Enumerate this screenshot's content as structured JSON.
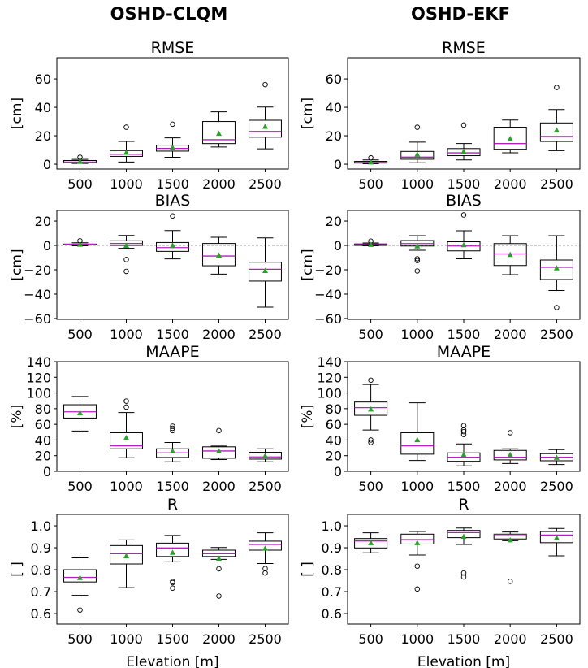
{
  "column_titles": [
    "OSHD-CLQM",
    "OSHD-EKF"
  ],
  "colors": {
    "median": "#b41fbf",
    "mean": "#2ca02c",
    "box": "#000000",
    "zero_line": "#808080"
  },
  "chart_data": [
    {
      "type": "box",
      "column": 0,
      "title": "RMSE",
      "ylabel": "[cm]",
      "xlabel": "",
      "categories": [
        "500",
        "1000",
        "1500",
        "2000",
        "2500"
      ],
      "ylim": [
        -3.4,
        74.9
      ],
      "yticks": [
        0,
        20,
        40,
        60
      ],
      "ytick_labels": [
        "0",
        "20",
        "40",
        "60"
      ],
      "zero_line": false,
      "boxes": [
        {
          "lo": 0.5,
          "q1": 1.1,
          "med": 1.5,
          "q3": 2.6,
          "hi": 3.4,
          "mean": 2.0,
          "out": [
            4.9
          ]
        },
        {
          "lo": 1.5,
          "q1": 5.5,
          "med": 7.0,
          "q3": 9.6,
          "hi": 16.0,
          "mean": 8.3,
          "out": [
            26.0
          ]
        },
        {
          "lo": 4.9,
          "q1": 9.2,
          "med": 11.1,
          "q3": 13.4,
          "hi": 18.5,
          "mean": 11.9,
          "out": [
            28.1
          ]
        },
        {
          "lo": 12.1,
          "q1": 14.5,
          "med": 17.2,
          "q3": 30.0,
          "hi": 36.8,
          "mean": 21.7,
          "out": []
        },
        {
          "lo": 10.8,
          "q1": 19.0,
          "med": 23.0,
          "q3": 30.9,
          "hi": 40.2,
          "mean": 26.6,
          "out": [
            56.0
          ]
        }
      ]
    },
    {
      "type": "box",
      "column": 1,
      "title": "RMSE",
      "ylabel": "[cm]",
      "xlabel": "",
      "categories": [
        "500",
        "1000",
        "1500",
        "2000",
        "2500"
      ],
      "ylim": [
        -3.4,
        74.9
      ],
      "yticks": [
        0,
        20,
        40,
        60
      ],
      "ytick_labels": [
        "0",
        "20",
        "40",
        "60"
      ],
      "zero_line": false,
      "boxes": [
        {
          "lo": 0.3,
          "q1": 0.8,
          "med": 1.3,
          "q3": 2.0,
          "hi": 3.0,
          "mean": 1.5,
          "out": [
            4.5
          ]
        },
        {
          "lo": 1.0,
          "q1": 3.5,
          "med": 5.0,
          "q3": 9.0,
          "hi": 15.5,
          "mean": 7.0,
          "out": [
            26.0
          ]
        },
        {
          "lo": 3.0,
          "q1": 6.0,
          "med": 8.0,
          "q3": 11.0,
          "hi": 14.5,
          "mean": 9.0,
          "out": [
            27.5
          ]
        },
        {
          "lo": 8.0,
          "q1": 10.5,
          "med": 14.5,
          "q3": 26.0,
          "hi": 31.0,
          "mean": 18.0,
          "out": []
        },
        {
          "lo": 9.5,
          "q1": 16.0,
          "med": 19.5,
          "q3": 29.0,
          "hi": 38.5,
          "mean": 24.0,
          "out": [
            54.0
          ]
        }
      ]
    },
    {
      "type": "box",
      "column": 0,
      "title": "BIAS",
      "ylabel": "[cm]",
      "xlabel": "",
      "categories": [
        "500",
        "1000",
        "1500",
        "2000",
        "2500"
      ],
      "ylim": [
        -60.7,
        28.7
      ],
      "yticks": [
        20,
        0,
        -20,
        -40,
        -60
      ],
      "ytick_labels": [
        "20",
        "0",
        "−20",
        "−40",
        "−60"
      ],
      "zero_line": true,
      "boxes": [
        {
          "lo": -0.3,
          "q1": 0.4,
          "med": 1.0,
          "q3": 1.1,
          "hi": 2.2,
          "mean": 0.9,
          "out": [
            3.8
          ]
        },
        {
          "lo": -2.4,
          "q1": 0.0,
          "med": 1.6,
          "q3": 3.8,
          "hi": 8.2,
          "mean": 0.0,
          "out": [
            -11.6,
            -21.3
          ]
        },
        {
          "lo": -11.1,
          "q1": -4.9,
          "med": -1.8,
          "q3": 2.4,
          "hi": 12.2,
          "mean": 0.2,
          "out": [
            24.2
          ]
        },
        {
          "lo": -23.6,
          "q1": -16.7,
          "med": -8.7,
          "q3": 1.6,
          "hi": 6.7,
          "mean": -8.0,
          "out": []
        },
        {
          "lo": -50.7,
          "q1": -29.3,
          "med": -19.6,
          "q3": -13.8,
          "hi": 6.2,
          "mean": -20.7,
          "out": []
        }
      ]
    },
    {
      "type": "box",
      "column": 1,
      "title": "BIAS",
      "ylabel": "[cm]",
      "xlabel": "",
      "categories": [
        "500",
        "1000",
        "1500",
        "2000",
        "2500"
      ],
      "ylim": [
        -60.7,
        28.7
      ],
      "yticks": [
        20,
        0,
        -20,
        -40,
        -60
      ],
      "ytick_labels": [
        "20",
        "0",
        "−20",
        "−40",
        "−60"
      ],
      "zero_line": true,
      "boxes": [
        {
          "lo": -0.3,
          "q1": 0.0,
          "med": 0.7,
          "q3": 1.2,
          "hi": 2.0,
          "mean": 0.8,
          "out": [
            3.5
          ]
        },
        {
          "lo": -4.0,
          "q1": -0.5,
          "med": 1.5,
          "q3": 4.0,
          "hi": 8.0,
          "mean": -0.5,
          "out": [
            -11.0,
            -12.5,
            -21.0
          ]
        },
        {
          "lo": -11.0,
          "q1": -4.5,
          "med": -0.5,
          "q3": 3.0,
          "hi": 12.0,
          "mean": 0.5,
          "out": [
            25.0
          ]
        },
        {
          "lo": -24.0,
          "q1": -16.5,
          "med": -7.0,
          "q3": 1.5,
          "hi": 8.0,
          "mean": -7.5,
          "out": []
        },
        {
          "lo": -37.0,
          "q1": -28.0,
          "med": -18.0,
          "q3": -12.0,
          "hi": 8.0,
          "mean": -18.5,
          "out": [
            -51.0
          ]
        }
      ]
    },
    {
      "type": "box",
      "column": 0,
      "title": "MAAPE",
      "ylabel": "[%]",
      "xlabel": "",
      "categories": [
        "500",
        "1000",
        "1500",
        "2000",
        "2500"
      ],
      "ylim": [
        0,
        140
      ],
      "yticks": [
        0,
        20,
        40,
        60,
        80,
        100,
        120,
        140
      ],
      "ytick_labels": [
        "0",
        "20",
        "40",
        "60",
        "80",
        "100",
        "120",
        "140"
      ],
      "zero_line": false,
      "boxes": [
        {
          "lo": 51.4,
          "q1": 68.0,
          "med": 76.0,
          "q3": 85.0,
          "hi": 95.5,
          "mean": 74.7,
          "out": []
        },
        {
          "lo": 17.4,
          "q1": 28.8,
          "med": 32.6,
          "q3": 49.3,
          "hi": 75.0,
          "mean": 43.0,
          "out": [
            82.0,
            89.6
          ]
        },
        {
          "lo": 12.2,
          "q1": 17.7,
          "med": 23.6,
          "q3": 28.8,
          "hi": 36.8,
          "mean": 26.0,
          "out": [
            52.0,
            55.0,
            57.6
          ]
        },
        {
          "lo": 15.0,
          "q1": 16.7,
          "med": 26.0,
          "q3": 31.3,
          "hi": 32.3,
          "mean": 26.0,
          "out": [
            52.0
          ]
        },
        {
          "lo": 12.2,
          "q1": 15.6,
          "med": 18.4,
          "q3": 24.3,
          "hi": 28.8,
          "mean": 20.1,
          "out": []
        }
      ]
    },
    {
      "type": "box",
      "column": 1,
      "title": "MAAPE",
      "ylabel": "[%]",
      "xlabel": "",
      "categories": [
        "500",
        "1000",
        "1500",
        "2000",
        "2500"
      ],
      "ylim": [
        0,
        140
      ],
      "yticks": [
        0,
        20,
        40,
        60,
        80,
        100,
        120,
        140
      ],
      "ytick_labels": [
        "0",
        "20",
        "40",
        "60",
        "80",
        "100",
        "120",
        "140"
      ],
      "zero_line": false,
      "boxes": [
        {
          "lo": 52.8,
          "q1": 71.5,
          "med": 81.3,
          "q3": 88.5,
          "hi": 110.8,
          "mean": 79.5,
          "out": [
            116.3,
            40.0,
            36.8
          ]
        },
        {
          "lo": 13.9,
          "q1": 21.9,
          "med": 32.6,
          "q3": 49.3,
          "hi": 87.5,
          "mean": 40.3,
          "out": []
        },
        {
          "lo": 7.0,
          "q1": 12.8,
          "med": 18.0,
          "q3": 23.6,
          "hi": 35.0,
          "mean": 21.5,
          "out": [
            47.0,
            50.7,
            52.8,
            58.3
          ]
        },
        {
          "lo": 10.0,
          "q1": 14.6,
          "med": 18.0,
          "q3": 26.7,
          "hi": 28.8,
          "mean": 21.5,
          "out": [
            49.3
          ]
        },
        {
          "lo": 8.7,
          "q1": 13.5,
          "med": 18.0,
          "q3": 22.6,
          "hi": 27.8,
          "mean": 17.7,
          "out": []
        }
      ]
    },
    {
      "type": "box",
      "column": 0,
      "title": "R",
      "ylabel": "[ ]",
      "xlabel": "Elevation [m]",
      "categories": [
        "500",
        "1000",
        "1500",
        "2000",
        "2500"
      ],
      "ylim": [
        0.552,
        1.052
      ],
      "yticks": [
        0.6,
        0.7,
        0.8,
        0.9,
        1.0
      ],
      "ytick_labels": [
        "0.6",
        "0.7",
        "0.8",
        "0.9",
        "1.0"
      ],
      "zero_line": false,
      "boxes": [
        {
          "lo": 0.683,
          "q1": 0.744,
          "med": 0.765,
          "q3": 0.8,
          "hi": 0.854,
          "mean": 0.764,
          "out": [
            0.616
          ]
        },
        {
          "lo": 0.718,
          "q1": 0.826,
          "med": 0.873,
          "q3": 0.91,
          "hi": 0.936,
          "mean": 0.863,
          "out": []
        },
        {
          "lo": 0.836,
          "q1": 0.86,
          "med": 0.899,
          "q3": 0.921,
          "hi": 0.956,
          "mean": 0.879,
          "out": [
            0.746,
            0.741,
            0.716
          ]
        },
        {
          "lo": 0.847,
          "q1": 0.86,
          "med": 0.873,
          "q3": 0.889,
          "hi": 0.901,
          "mean": 0.852,
          "out": [
            0.804,
            0.68
          ]
        },
        {
          "lo": 0.828,
          "q1": 0.889,
          "med": 0.915,
          "q3": 0.93,
          "hi": 0.968,
          "mean": 0.898,
          "out": [
            0.805,
            0.785
          ]
        }
      ]
    },
    {
      "type": "box",
      "column": 1,
      "title": "R",
      "ylabel": "[ ]",
      "xlabel": "Elevation [m]",
      "categories": [
        "500",
        "1000",
        "1500",
        "2000",
        "2500"
      ],
      "ylim": [
        0.552,
        1.052
      ],
      "yticks": [
        0.6,
        0.7,
        0.8,
        0.9,
        1.0
      ],
      "ytick_labels": [
        "0.6",
        "0.7",
        "0.8",
        "0.9",
        "1.0"
      ],
      "zero_line": false,
      "boxes": [
        {
          "lo": 0.877,
          "q1": 0.899,
          "med": 0.931,
          "q3": 0.942,
          "hi": 0.968,
          "mean": 0.923,
          "out": []
        },
        {
          "lo": 0.867,
          "q1": 0.917,
          "med": 0.937,
          "q3": 0.962,
          "hi": 0.974,
          "mean": 0.923,
          "out": [
            0.816,
            0.712
          ]
        },
        {
          "lo": 0.915,
          "q1": 0.946,
          "med": 0.969,
          "q3": 0.979,
          "hi": 0.99,
          "mean": 0.952,
          "out": [
            0.785,
            0.767
          ]
        },
        {
          "lo": 0.932,
          "q1": 0.94,
          "med": 0.96,
          "q3": 0.962,
          "hi": 0.972,
          "mean": 0.936,
          "out": [
            0.747
          ]
        },
        {
          "lo": 0.863,
          "q1": 0.923,
          "med": 0.958,
          "q3": 0.974,
          "hi": 0.988,
          "mean": 0.946,
          "out": []
        }
      ]
    }
  ]
}
